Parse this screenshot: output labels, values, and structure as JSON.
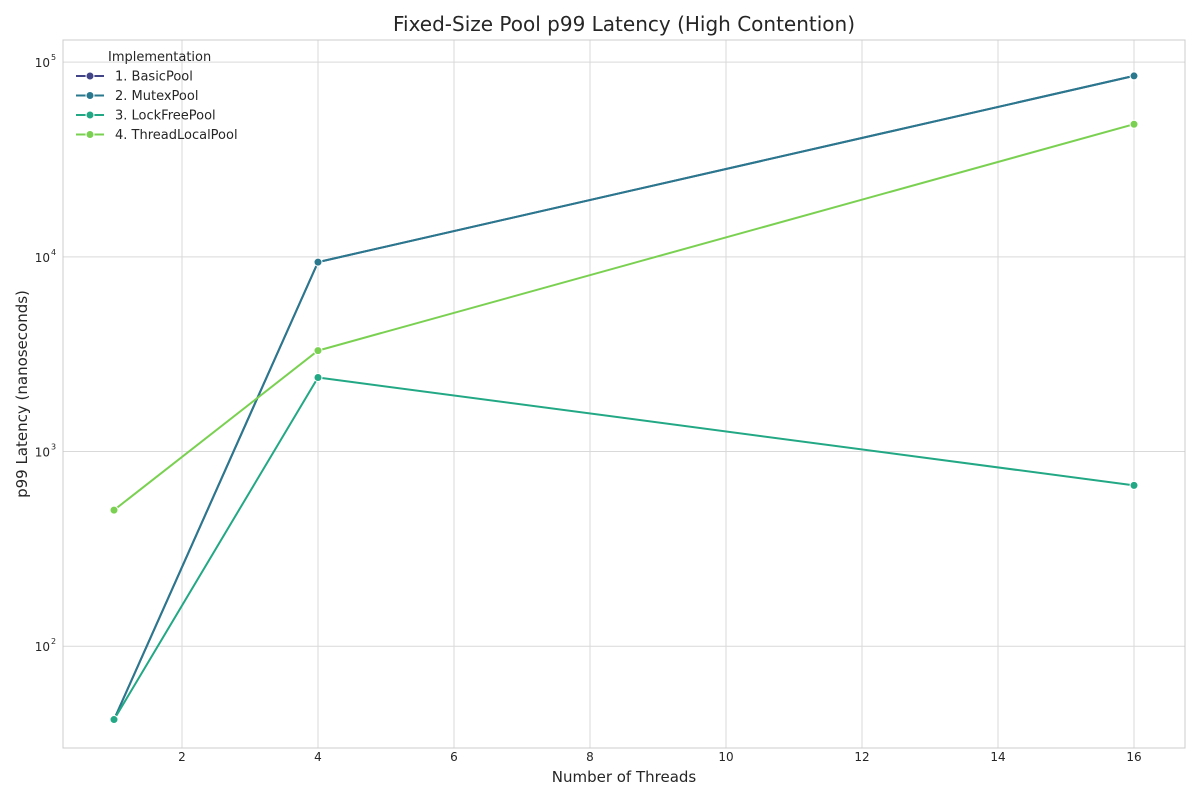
{
  "chart_data": {
    "type": "line",
    "title": "Fixed-Size Pool p99 Latency (High Contention)",
    "xlabel": "Number of Threads",
    "ylabel": "p99 Latency (nanoseconds)",
    "xscale": "linear",
    "yscale": "log",
    "xlim": [
      0.25,
      16.75
    ],
    "ylim": [
      30,
      130000
    ],
    "xticks": [
      2,
      4,
      6,
      8,
      10,
      12,
      14,
      16
    ],
    "ytick_labels": [
      {
        "value": 100,
        "base": "10",
        "exp": "2"
      },
      {
        "value": 1000,
        "base": "10",
        "exp": "3"
      },
      {
        "value": 10000,
        "base": "10",
        "exp": "4"
      },
      {
        "value": 100000,
        "base": "10",
        "exp": "5"
      }
    ],
    "grid": true,
    "legend": {
      "title": "Implementation",
      "placement": "top-left"
    },
    "series": [
      {
        "name": "1. BasicPool",
        "color": "#414487",
        "x": [
          1,
          4,
          16
        ],
        "y": [
          42,
          9400,
          85000
        ]
      },
      {
        "name": "2. MutexPool",
        "color": "#2a788e",
        "x": [
          1,
          4,
          16
        ],
        "y": [
          42,
          9400,
          85000
        ]
      },
      {
        "name": "3. LockFreePool",
        "color": "#22a884",
        "x": [
          1,
          4,
          16
        ],
        "y": [
          42,
          2400,
          670
        ]
      },
      {
        "name": "4. ThreadLocalPool",
        "color": "#7ad151",
        "x": [
          1,
          4,
          16
        ],
        "y": [
          500,
          3300,
          48000
        ]
      }
    ]
  }
}
